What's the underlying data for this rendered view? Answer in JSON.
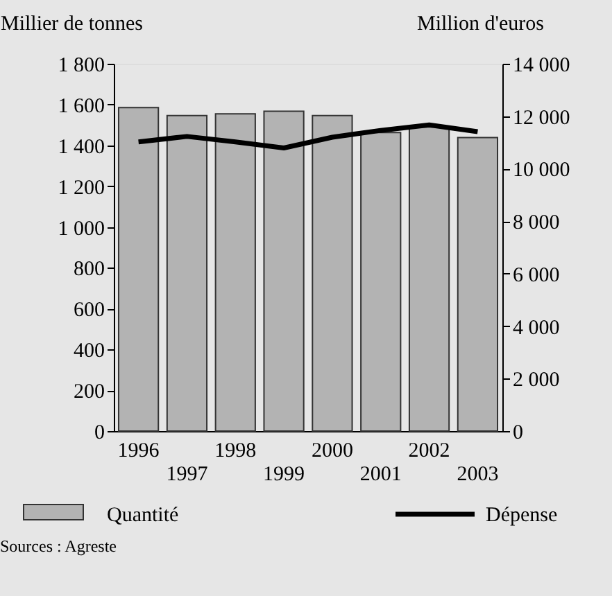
{
  "chart_data": {
    "type": "bar",
    "categories": [
      "1996",
      "1997",
      "1998",
      "1999",
      "2000",
      "2001",
      "2002",
      "2003"
    ],
    "series": [
      {
        "name": "Quantité",
        "color": "#b3b3b3",
        "values": [
          1585,
          1546,
          1555,
          1567,
          1546,
          1463,
          1490,
          1438
        ]
      },
      {
        "name": "Dépense",
        "type": "line",
        "axis": "y2",
        "color": "#000000",
        "values": [
          11020,
          11230,
          11020,
          10790,
          11200,
          11460,
          11670,
          11410
        ]
      }
    ],
    "ylabel": "Millier de tonnes",
    "y2label": "Million d'euros",
    "ylim": [
      0,
      1800
    ],
    "yticks": [
      0,
      200,
      400,
      600,
      800,
      {
        "value": 1000,
        "label": "1 000"
      },
      {
        "value": 1200,
        "label": "1 200"
      },
      {
        "value": 1400,
        "label": "1 400"
      },
      {
        "value": 1600,
        "label": "1 600"
      },
      {
        "value": 1800,
        "label": "1 800"
      }
    ],
    "y2lim": [
      0,
      14000
    ],
    "y2ticks": [
      0,
      {
        "value": 2000,
        "label": "2 000"
      },
      {
        "value": 4000,
        "label": "4 000"
      },
      {
        "value": 6000,
        "label": "6 000"
      },
      {
        "value": 8000,
        "label": "8 000"
      },
      {
        "value": 10000,
        "label": "10 000"
      },
      {
        "value": 12000,
        "label": "12 000"
      },
      {
        "value": 14000,
        "label": "14 000"
      }
    ],
    "grid": false,
    "legend": "bottom",
    "annotations": [
      "Sources : Agreste"
    ]
  }
}
